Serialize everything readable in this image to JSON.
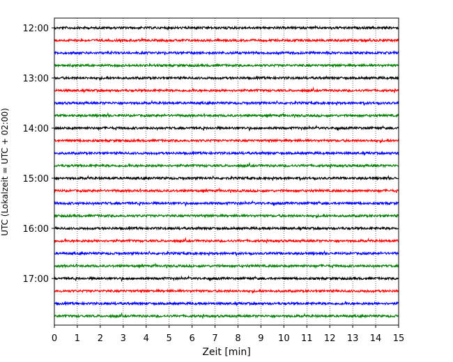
{
  "chart_data": {
    "type": "line",
    "title": "",
    "xlabel": "Zeit  [min]",
    "ylabel": "UTC (Lokalzeit = UTC + 02:00)",
    "xlim": [
      0,
      15
    ],
    "x_ticks": [
      "0",
      "1",
      "2",
      "3",
      "4",
      "5",
      "6",
      "7",
      "8",
      "9",
      "10",
      "11",
      "12",
      "13",
      "14",
      "15"
    ],
    "y_ticks": [
      "12:00",
      "13:00",
      "14:00",
      "15:00",
      "16:00",
      "17:00"
    ],
    "grid": "vertical dotted at each minute",
    "trace_interval_min": 15,
    "trace_start": "12:00",
    "trace_colors": [
      "#000000",
      "#ff0000",
      "#0000ff",
      "#008000"
    ],
    "trace_count": 24
  }
}
